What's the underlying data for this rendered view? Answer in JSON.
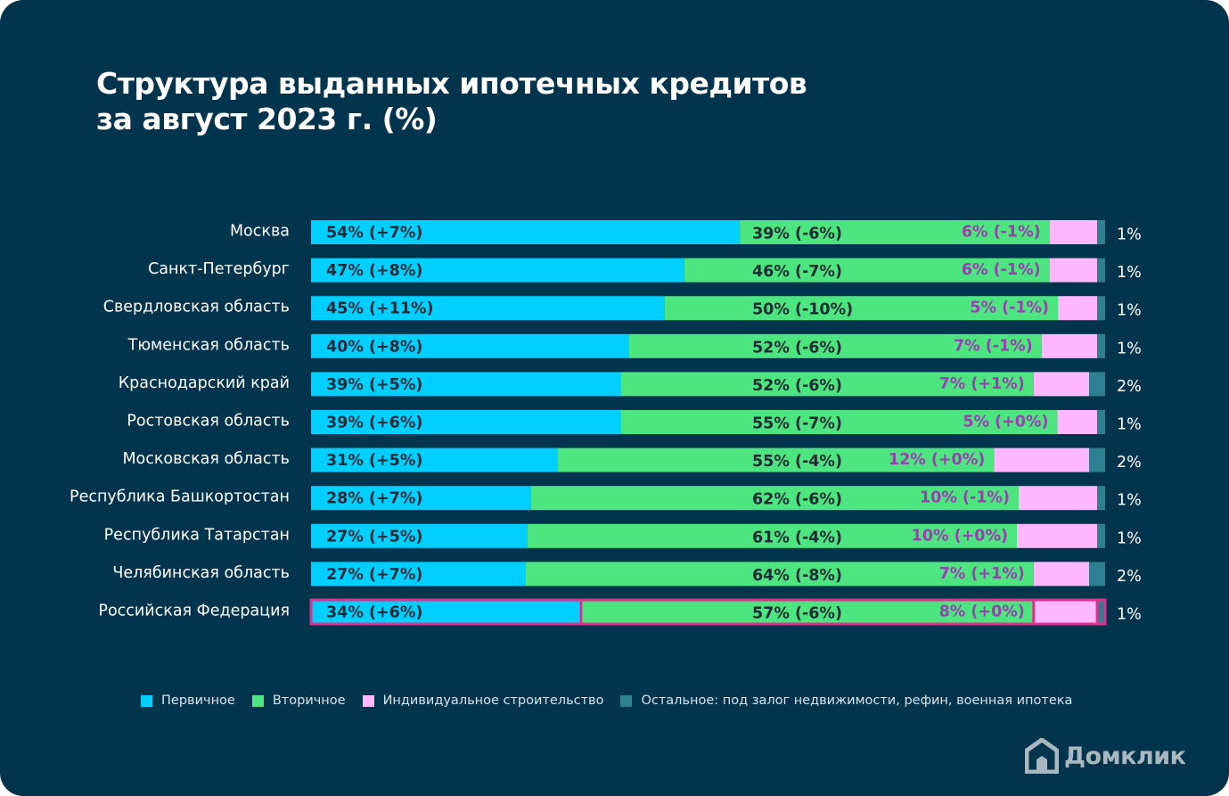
{
  "colors": {
    "background": "#03344d",
    "primary": "#00cfff",
    "secondary": "#4ce57f",
    "individual": "#ffb8ff",
    "other": "#2d7f92",
    "highlight": "#e0308f",
    "bar_label_dark": "#1e2a36",
    "bar_label_pink": "#9b3eb3"
  },
  "brand": {
    "name": "Домклик",
    "icon": "house-logo-icon"
  },
  "chart_data": {
    "type": "bar",
    "orientation": "horizontal",
    "stacked": true,
    "title": "Структура выданных ипотечных кредитов",
    "subtitle": "за август 2023 г. (%)",
    "xlim": [
      0,
      100
    ],
    "categories": [
      "Москва",
      "Санкт-Петербург",
      "Свердловская область",
      "Тюменская область",
      "Краснодарский край",
      "Ростовская область",
      "Московская область",
      "Республика Башкортостан",
      "Республика Татарстан",
      "Челябинская область",
      "Российская Федерация"
    ],
    "highlighted_category": "Российская Федерация",
    "series": [
      {
        "name": "Первичное",
        "values": [
          54,
          47,
          45,
          40,
          39,
          39,
          31,
          28,
          27,
          27,
          34
        ],
        "labels": [
          "54% (+7%)",
          "47% (+8%)",
          "45% (+11%)",
          "40% (+8%)",
          "39% (+5%)",
          "39% (+6%)",
          "31% (+5%)",
          "28% (+7%)",
          "27% (+5%)",
          "27% (+7%)",
          "34% (+6%)"
        ]
      },
      {
        "name": "Вторичное",
        "values": [
          39,
          46,
          50,
          52,
          52,
          55,
          55,
          62,
          61,
          64,
          57
        ],
        "labels": [
          "39% (-6%)",
          "46% (-7%)",
          "50% (-10%)",
          "52% (-6%)",
          "52% (-6%)",
          "55% (-7%)",
          "55% (-4%)",
          "62% (-6%)",
          "61% (-4%)",
          "64% (-8%)",
          "57% (-6%)"
        ]
      },
      {
        "name": "Индивидуальное строительство",
        "values": [
          6,
          6,
          5,
          7,
          7,
          5,
          12,
          10,
          10,
          7,
          8
        ],
        "labels": [
          "6% (-1%)",
          "6% (-1%)",
          "5% (-1%)",
          "7% (-1%)",
          "7% (+1%)",
          "5% (+0%)",
          "12% (+0%)",
          "10% (-1%)",
          "10% (+0%)",
          "7% (+1%)",
          "8% (+0%)"
        ]
      },
      {
        "name": "Остальное: под залог недвижимости, рефин, военная ипотека",
        "values": [
          1,
          1,
          1,
          1,
          2,
          1,
          2,
          1,
          1,
          2,
          1
        ],
        "labels": [
          "1%",
          "1%",
          "1%",
          "1%",
          "2%",
          "1%",
          "2%",
          "1%",
          "1%",
          "2%",
          "1%"
        ]
      }
    ],
    "legend_position": "bottom",
    "grid": false
  }
}
